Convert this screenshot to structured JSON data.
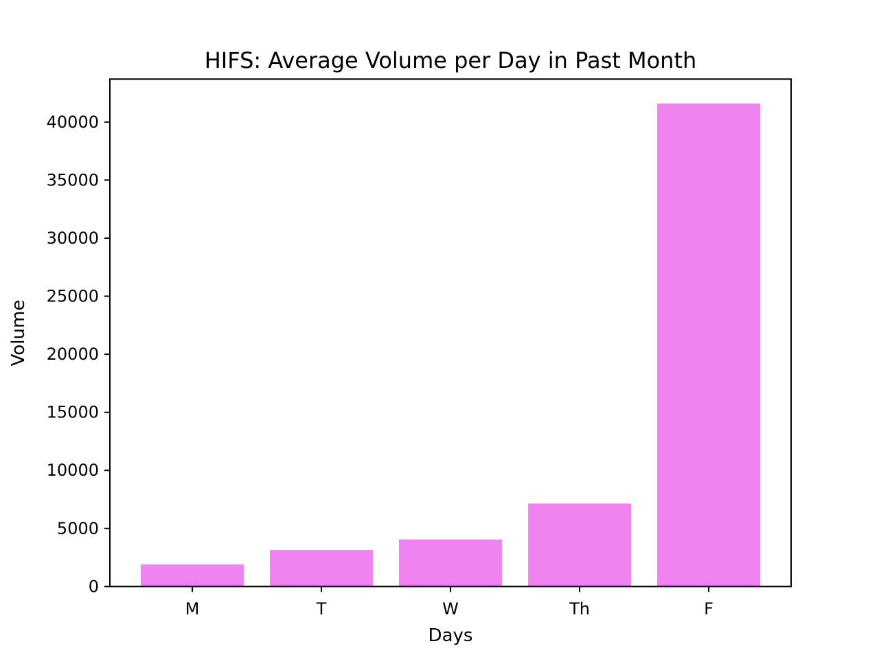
{
  "chart_data": {
    "type": "bar",
    "title": "HIFS: Average Volume per Day in Past Month",
    "xlabel": "Days",
    "ylabel": "Volume",
    "categories": [
      "M",
      "T",
      "W",
      "Th",
      "F"
    ],
    "values": [
      1900,
      3150,
      4050,
      7150,
      41600
    ],
    "ylim": [
      0,
      43700
    ],
    "yticks": [
      0,
      5000,
      10000,
      15000,
      20000,
      25000,
      30000,
      35000,
      40000
    ],
    "ytick_labels": [
      "0",
      "5000",
      "10000",
      "15000",
      "20000",
      "25000",
      "30000",
      "35000",
      "40000"
    ],
    "grid": false,
    "legend": false,
    "bar_color": "#ee82ee"
  }
}
